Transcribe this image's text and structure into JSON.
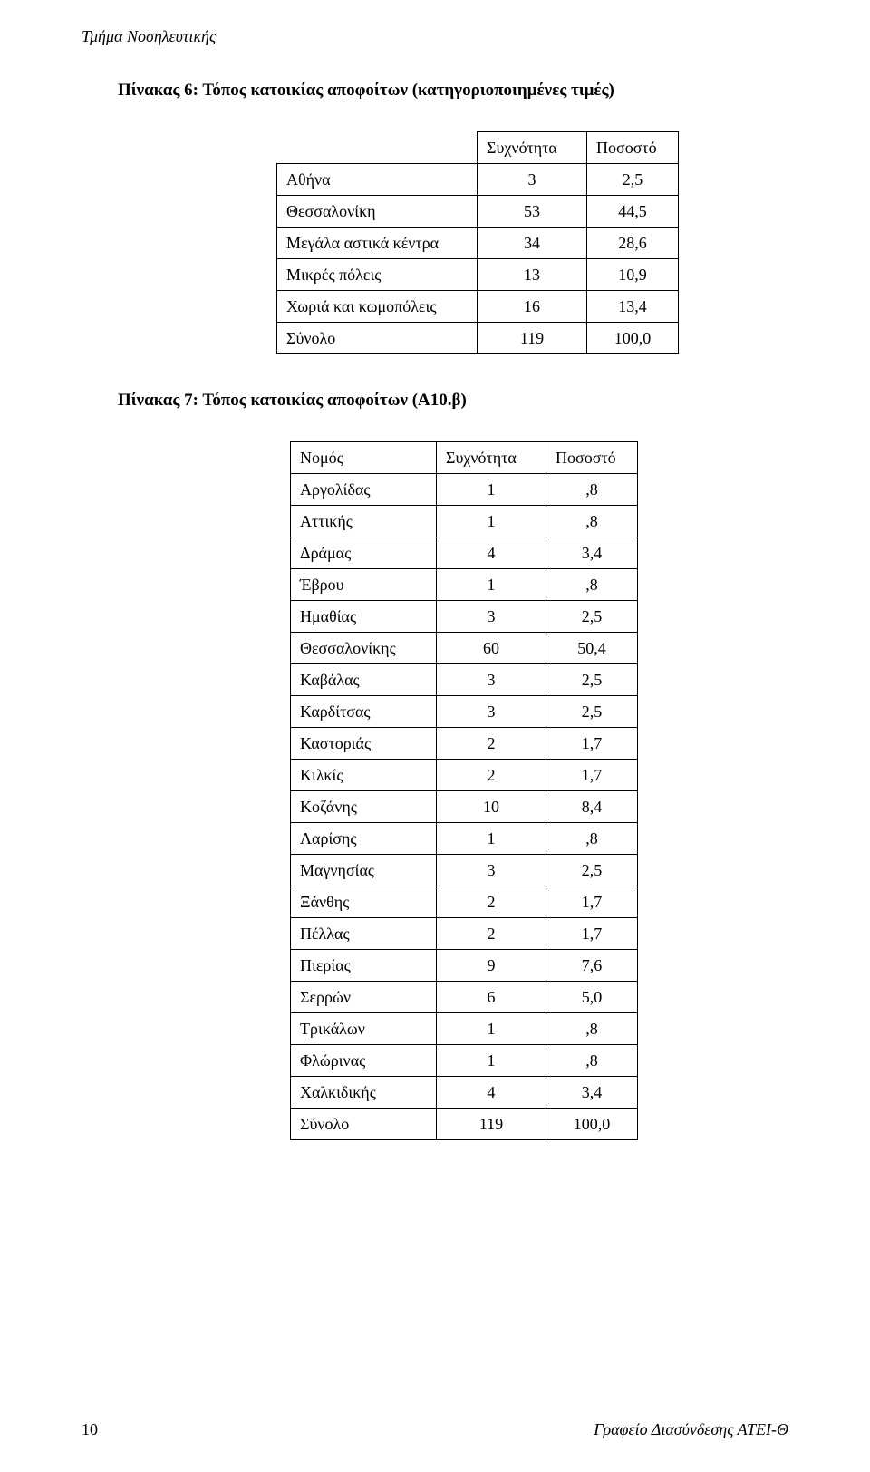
{
  "header": "Τμήμα Νοσηλευτικής",
  "table1": {
    "title": "Πίνακας 6: Τόπος κατοικίας αποφοίτων (κατηγοριοποιημένες τιμές)",
    "columns": [
      "",
      "Συχνότητα",
      "Ποσοστό"
    ],
    "rows": [
      [
        "Αθήνα",
        "3",
        "2,5"
      ],
      [
        "Θεσσαλονίκη",
        "53",
        "44,5"
      ],
      [
        "Μεγάλα αστικά κέντρα",
        "34",
        "28,6"
      ],
      [
        "Μικρές πόλεις",
        "13",
        "10,9"
      ],
      [
        "Χωριά και κωμοπόλεις",
        "16",
        "13,4"
      ],
      [
        "Σύνολο",
        "119",
        "100,0"
      ]
    ]
  },
  "table2": {
    "title": "Πίνακας 7: Τόπος κατοικίας αποφοίτων (Α10.β)",
    "columns": [
      "Νομός",
      "Συχνότητα",
      "Ποσοστό"
    ],
    "rows": [
      [
        "Αργολίδας",
        "1",
        ",8"
      ],
      [
        "Αττικής",
        "1",
        ",8"
      ],
      [
        "Δράμας",
        "4",
        "3,4"
      ],
      [
        "Έβρου",
        "1",
        ",8"
      ],
      [
        "Ημαθίας",
        "3",
        "2,5"
      ],
      [
        "Θεσσαλονίκης",
        "60",
        "50,4"
      ],
      [
        "Καβάλας",
        "3",
        "2,5"
      ],
      [
        "Καρδίτσας",
        "3",
        "2,5"
      ],
      [
        "Καστοριάς",
        "2",
        "1,7"
      ],
      [
        "Κιλκίς",
        "2",
        "1,7"
      ],
      [
        "Κοζάνης",
        "10",
        "8,4"
      ],
      [
        "Λαρίσης",
        "1",
        ",8"
      ],
      [
        "Μαγνησίας",
        "3",
        "2,5"
      ],
      [
        "Ξάνθης",
        "2",
        "1,7"
      ],
      [
        "Πέλλας",
        "2",
        "1,7"
      ],
      [
        "Πιερίας",
        "9",
        "7,6"
      ],
      [
        "Σερρών",
        "6",
        "5,0"
      ],
      [
        "Τρικάλων",
        "1",
        ",8"
      ],
      [
        "Φλώρινας",
        "1",
        ",8"
      ],
      [
        "Χαλκιδικής",
        "4",
        "3,4"
      ],
      [
        "Σύνολο",
        "119",
        "100,0"
      ]
    ]
  },
  "footer": {
    "page_number": "10",
    "right_text": "Γραφείο Διασύνδεσης ΑΤΕΙ-Θ"
  }
}
